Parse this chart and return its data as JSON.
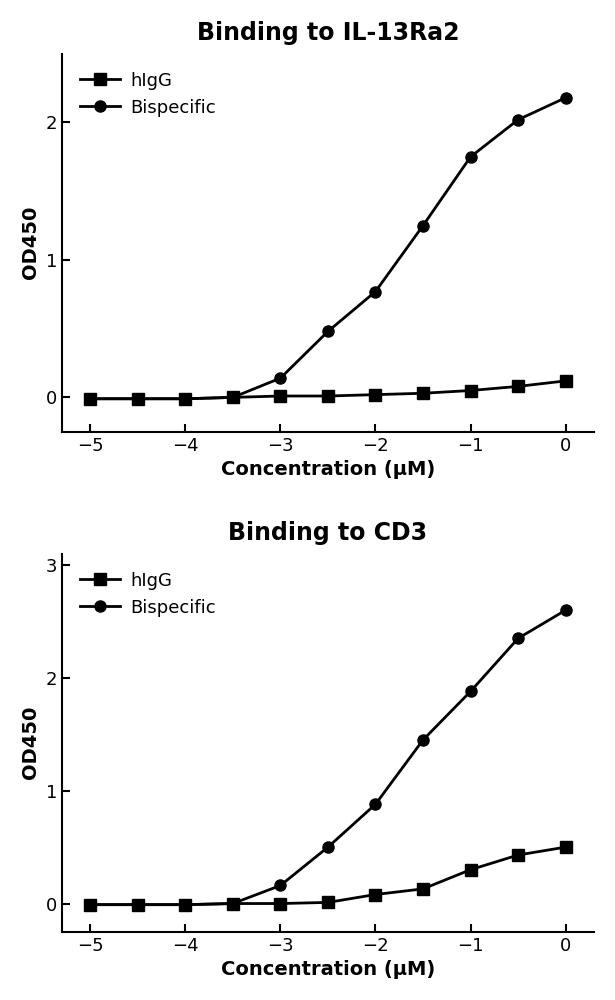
{
  "plot1": {
    "title": "Binding to IL-13Ra2",
    "xlabel": "Concentration (μM)",
    "ylabel": "OD450",
    "xlim": [
      -5.3,
      0.3
    ],
    "ylim": [
      -0.25,
      2.5
    ],
    "yticks": [
      0,
      1,
      2
    ],
    "xticks": [
      -5,
      -4,
      -3,
      -2,
      -1,
      0
    ],
    "hIgG_x": [
      -5.0,
      -4.5,
      -4.0,
      -3.5,
      -3.0,
      -2.5,
      -2.0,
      -1.5,
      -1.0,
      -0.5,
      0.0
    ],
    "hIgG_y": [
      -0.01,
      -0.01,
      -0.01,
      0.0,
      0.01,
      0.01,
      0.02,
      0.03,
      0.05,
      0.08,
      0.12
    ],
    "bispecific_x": [
      -5.0,
      -4.5,
      -4.0,
      -3.5,
      -3.0,
      -2.5,
      -2.0,
      -1.5,
      -1.0,
      -0.5,
      0.0
    ],
    "bispecific_y": [
      -0.01,
      -0.01,
      -0.01,
      0.0,
      0.14,
      0.48,
      0.77,
      1.25,
      1.75,
      2.02,
      2.18
    ]
  },
  "plot2": {
    "title": "Binding to CD3",
    "xlabel": "Concentration (μM)",
    "ylabel": "OD450",
    "xlim": [
      -5.3,
      0.3
    ],
    "ylim": [
      -0.25,
      3.1
    ],
    "yticks": [
      0,
      1,
      2,
      3
    ],
    "xticks": [
      -5,
      -4,
      -3,
      -2,
      -1,
      0
    ],
    "hIgG_x": [
      -5.0,
      -4.5,
      -4.0,
      -3.5,
      -3.0,
      -2.5,
      -2.0,
      -1.5,
      -1.0,
      -0.5,
      0.0
    ],
    "hIgG_y": [
      -0.01,
      -0.01,
      -0.01,
      0.0,
      0.0,
      0.01,
      0.08,
      0.13,
      0.3,
      0.43,
      0.5
    ],
    "bispecific_x": [
      -5.0,
      -4.5,
      -4.0,
      -3.5,
      -3.0,
      -2.5,
      -2.0,
      -1.5,
      -1.0,
      -0.5,
      0.0
    ],
    "bispecific_y": [
      -0.01,
      -0.01,
      -0.01,
      0.0,
      0.16,
      0.5,
      0.88,
      1.45,
      1.88,
      2.35,
      2.6
    ]
  },
  "line_color": "#000000",
  "marker_square": "s",
  "marker_circle": "o",
  "markersize": 8,
  "linewidth": 2.0,
  "legend_hIgG": "hIgG",
  "legend_bispecific": "Bispecific",
  "title_fontsize": 17,
  "label_fontsize": 14,
  "tick_fontsize": 13,
  "legend_fontsize": 13
}
